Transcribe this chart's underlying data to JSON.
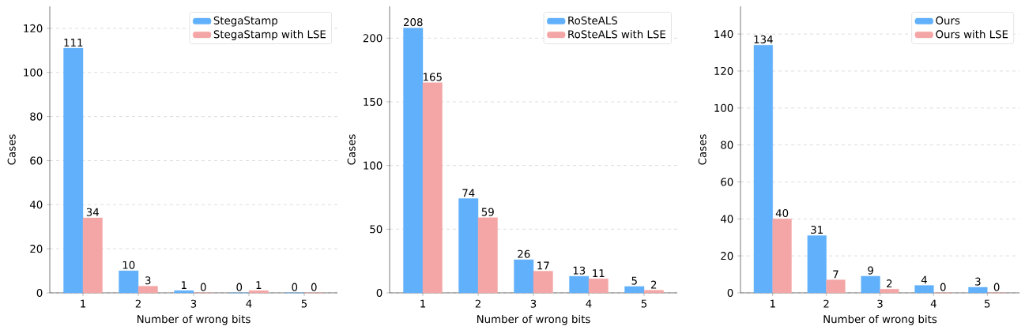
{
  "chart_data": [
    {
      "type": "bar",
      "categories": [
        "1",
        "2",
        "3",
        "4",
        "5"
      ],
      "xlabel": "Number of wrong bits",
      "ylabel": "Cases",
      "series": [
        {
          "name": "StegaStamp",
          "color": "#61b0fb",
          "values": [
            111,
            10,
            1,
            0,
            0
          ]
        },
        {
          "name": "StegaStamp with LSE",
          "color": "#f4a6a6",
          "values": [
            34,
            3,
            0,
            1,
            0
          ]
        }
      ],
      "ylim": [
        0,
        130
      ],
      "yticks": [
        0,
        20,
        40,
        60,
        80,
        100,
        120
      ],
      "grid": "y",
      "legend": "top right",
      "data_labels": true
    },
    {
      "type": "bar",
      "categories": [
        "1",
        "2",
        "3",
        "4",
        "5"
      ],
      "xlabel": "Number of wrong bits",
      "ylabel": "Cases",
      "series": [
        {
          "name": "RoSteALS",
          "color": "#61b0fb",
          "values": [
            208,
            74,
            26,
            13,
            5
          ]
        },
        {
          "name": "RoSteALS with LSE",
          "color": "#f4a6a6",
          "values": [
            165,
            59,
            17,
            11,
            2
          ]
        }
      ],
      "ylim": [
        0,
        225
      ],
      "yticks": [
        0,
        50,
        100,
        150,
        200
      ],
      "grid": "y",
      "legend": "top right",
      "data_labels": true
    },
    {
      "type": "bar",
      "categories": [
        "1",
        "2",
        "3",
        "4",
        "5"
      ],
      "xlabel": "Number of wrong bits",
      "ylabel": "Cases",
      "series": [
        {
          "name": "Ours",
          "color": "#61b0fb",
          "values": [
            134,
            31,
            9,
            4,
            3
          ]
        },
        {
          "name": "Ours with LSE",
          "color": "#f4a6a6",
          "values": [
            40,
            7,
            2,
            0,
            0
          ]
        }
      ],
      "ylim": [
        0,
        155
      ],
      "yticks": [
        0,
        20,
        40,
        60,
        80,
        100,
        120,
        140
      ],
      "grid": "y",
      "legend": "top right",
      "data_labels": true
    }
  ]
}
